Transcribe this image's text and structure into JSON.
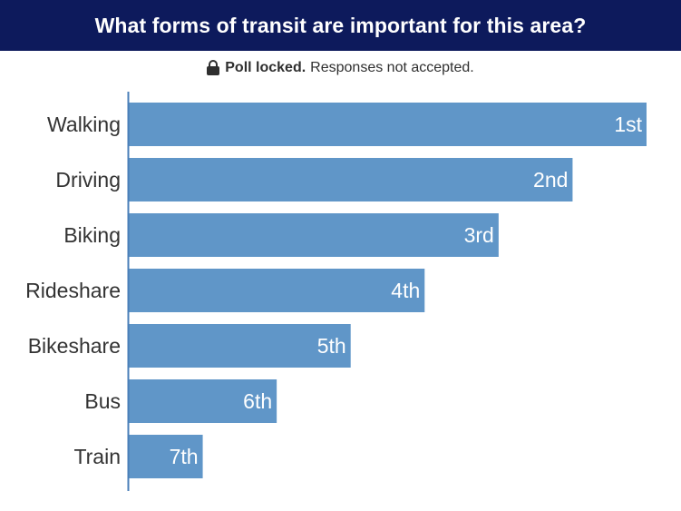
{
  "header": {
    "title": "What forms of transit are important for this area?",
    "background_color": "#0d1a5c"
  },
  "status": {
    "icon": "lock-icon",
    "strong_text": "Poll locked.",
    "text": "Responses not accepted."
  },
  "chart_data": {
    "type": "bar",
    "orientation": "horizontal",
    "categories": [
      "Walking",
      "Driving",
      "Biking",
      "Rideshare",
      "Bikeshare",
      "Bus",
      "Train"
    ],
    "values": [
      7,
      6,
      5,
      4,
      3,
      2,
      1
    ],
    "data_labels": [
      "1st",
      "2nd",
      "3rd",
      "4th",
      "5th",
      "6th",
      "7th"
    ],
    "bar_color": "#6096c8",
    "xlim": [
      0,
      7
    ],
    "grid": false,
    "legend": "none",
    "title": ""
  }
}
